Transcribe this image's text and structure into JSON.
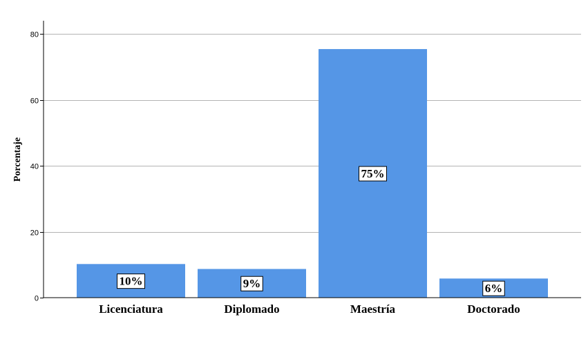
{
  "chart_data": {
    "type": "bar",
    "categories": [
      "Licenciatura",
      "Diplomado",
      "Maestría",
      "Doctorado"
    ],
    "values": [
      10.2,
      8.7,
      75.4,
      5.8
    ],
    "data_labels": [
      "10%",
      "9%",
      "75%",
      "6%"
    ],
    "ylabel": "Porcentaje",
    "xlabel": "",
    "ylim": [
      0,
      84
    ],
    "yticks": [
      0,
      20,
      40,
      60,
      80
    ],
    "grid": true,
    "bar_color": "#5596e6"
  }
}
